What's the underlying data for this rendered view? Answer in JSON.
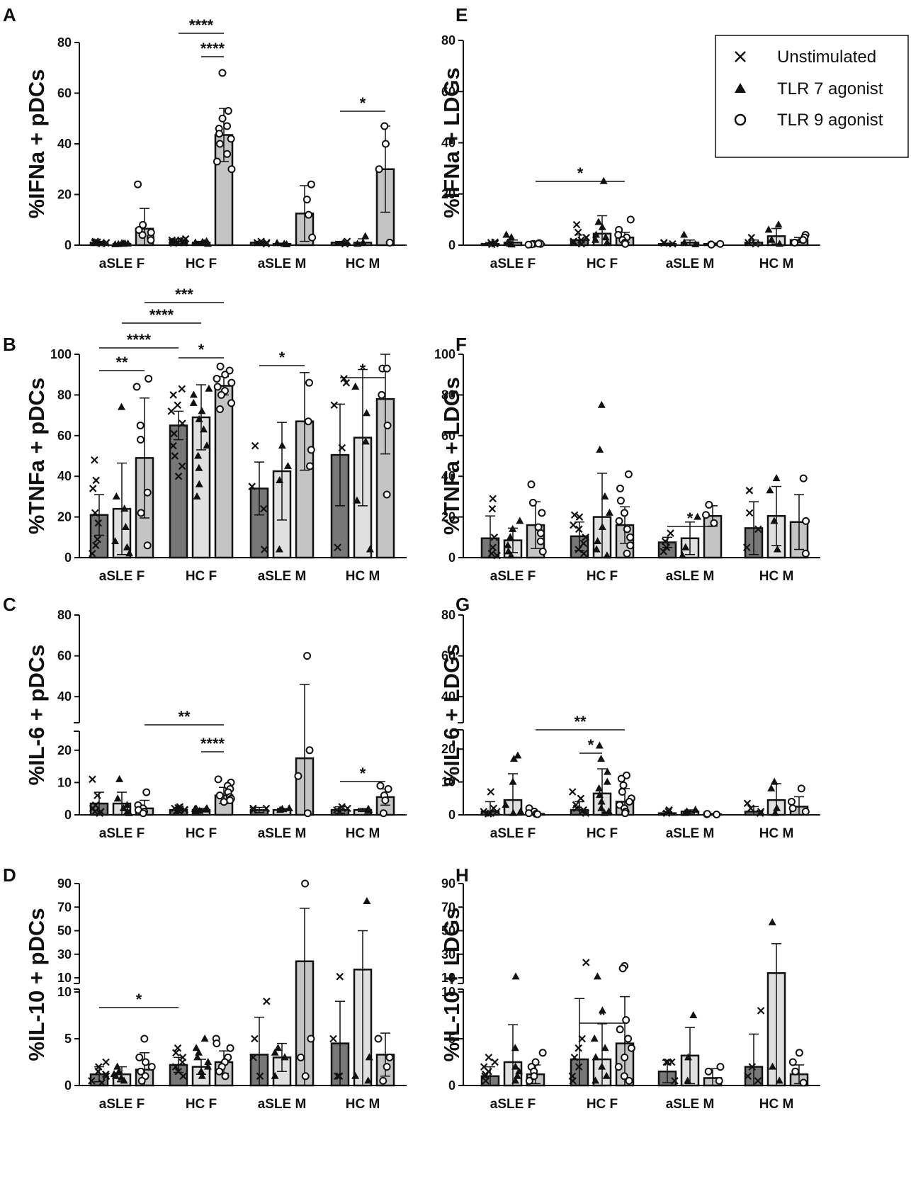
{
  "figure": {
    "groups": [
      "aSLE F",
      "HC F",
      "aSLE M",
      "HC M"
    ],
    "conditions": [
      "Unstimulated",
      "TLR 7 agonist",
      "TLR 9 agonist"
    ],
    "colors": {
      "unstim": "#777777",
      "tlr7": "#e0e0e0",
      "tlr9": "#c4c4c4",
      "ink": "#111111"
    }
  },
  "legend": {
    "items": [
      {
        "marker": "x-mark-icon",
        "label": "Unstimulated"
      },
      {
        "marker": "triangle-icon",
        "label": "TLR 7 agonist"
      },
      {
        "marker": "circle-icon",
        "label": "TLR 9 agonist"
      }
    ]
  },
  "chart_data": [
    {
      "panel": "A",
      "type": "bar",
      "title": "",
      "ylabel": "%IFNa + pDCs",
      "categories": [
        "aSLE F",
        "HC F",
        "aSLE M",
        "HC M"
      ],
      "ylim": [
        0,
        80
      ],
      "yticks": [
        "0",
        "20",
        "40",
        "60",
        "80"
      ],
      "series": [
        {
          "name": "Unstimulated",
          "values": [
            1,
            1.5,
            1,
            1
          ],
          "errors": [
            0.5,
            1,
            0.5,
            0.5
          ]
        },
        {
          "name": "TLR 7 agonist",
          "values": [
            0.5,
            1,
            0.5,
            1
          ],
          "errors": [
            0.5,
            0.5,
            0.3,
            1.5
          ]
        },
        {
          "name": "TLR 9 agonist",
          "values": [
            6.5,
            43.5,
            12.5,
            30
          ],
          "errors": [
            8,
            10.5,
            11,
            17
          ]
        }
      ],
      "significance": [
        {
          "label": "****",
          "from": "HC F / Unstimulated",
          "to": "HC F / TLR 9 agonist"
        },
        {
          "label": "****",
          "from": "HC F / TLR 7 agonist",
          "to": "HC F / TLR 9 agonist"
        },
        {
          "label": "*",
          "from": "HC M / Unstimulated",
          "to": "HC M / TLR 9 agonist"
        }
      ]
    },
    {
      "panel": "B",
      "type": "bar",
      "title": "",
      "ylabel": "%TNFa + pDCs",
      "categories": [
        "aSLE F",
        "HC F",
        "aSLE M",
        "HC M"
      ],
      "ylim": [
        0,
        100
      ],
      "yticks": [
        "0",
        "20",
        "40",
        "60",
        "80",
        "100"
      ],
      "series": [
        {
          "name": "Unstimulated",
          "values": [
            21,
            65,
            34,
            50.5
          ],
          "errors": [
            10,
            7,
            13,
            25
          ]
        },
        {
          "name": "TLR 7 agonist",
          "values": [
            24,
            69,
            42.5,
            59
          ],
          "errors": [
            22.5,
            16,
            24,
            33.5
          ]
        },
        {
          "name": "TLR 9 agonist",
          "values": [
            49,
            84.5,
            67,
            78
          ],
          "errors": [
            29.5,
            4.5,
            24,
            27
          ]
        }
      ],
      "significance": [
        {
          "label": "***",
          "from": "aSLE F / TLR 9 agonist",
          "to": "HC F / TLR 9 agonist"
        },
        {
          "label": "****",
          "from": "aSLE F / TLR 7 agonist",
          "to": "HC F / TLR 7 agonist"
        },
        {
          "label": "****",
          "from": "aSLE F / Unstimulated",
          "to": "HC F / Unstimulated"
        },
        {
          "label": "**",
          "from": "aSLE F / Unstimulated",
          "to": "aSLE F / TLR 9 agonist"
        },
        {
          "label": "*",
          "from": "HC F / Unstimulated",
          "to": "HC F / TLR 9 agonist"
        },
        {
          "label": "*",
          "from": "aSLE M / Unstimulated",
          "to": "aSLE M / TLR 9 agonist"
        },
        {
          "label": "*",
          "from": "HC M / Unstimulated",
          "to": "HC M / TLR 9 agonist"
        }
      ]
    },
    {
      "panel": "C",
      "type": "bar",
      "title": "",
      "ylabel": "%IL-6 + pDCs",
      "categories": [
        "aSLE F",
        "HC F",
        "aSLE M",
        "HC M"
      ],
      "ylim": [
        0,
        80
      ],
      "ybreak": [
        25,
        30
      ],
      "yticks": [
        "0",
        "10",
        "20",
        "40",
        "60",
        "80"
      ],
      "series": [
        {
          "name": "Unstimulated",
          "values": [
            3.5,
            1.5,
            1.5,
            1.5
          ],
          "errors": [
            3.5,
            0.8,
            0.8,
            1
          ]
        },
        {
          "name": "TLR 7 agonist",
          "values": [
            3.5,
            1.5,
            1.5,
            1.5
          ],
          "errors": [
            3.5,
            0.5,
            0.5,
            0.5
          ]
        },
        {
          "name": "TLR 9 agonist",
          "values": [
            2,
            6,
            17.5,
            5.5
          ],
          "errors": [
            2.5,
            2.5,
            28.5,
            2.5
          ]
        }
      ],
      "significance": [
        {
          "label": "**",
          "from": "aSLE F / TLR 9 agonist",
          "to": "HC F / TLR 9 agonist"
        },
        {
          "label": "****",
          "from": "HC F / TLR 7 agonist",
          "to": "HC F / TLR 9 agonist"
        },
        {
          "label": "*",
          "from": "HC M / Unstimulated",
          "to": "HC M / TLR 9 agonist"
        }
      ]
    },
    {
      "panel": "D",
      "type": "bar",
      "title": "",
      "ylabel": "%IL-10 + pDCs",
      "categories": [
        "aSLE F",
        "HC F",
        "aSLE M",
        "HC M"
      ],
      "ylim": [
        0,
        90
      ],
      "ybreak": [
        10,
        10
      ],
      "yticks": [
        "0",
        "5",
        "10",
        "10",
        "30",
        "50",
        "70",
        "90"
      ],
      "series": [
        {
          "name": "Unstimulated",
          "values": [
            1.2,
            2.2,
            3.3,
            4.5
          ],
          "errors": [
            0.8,
            0.8,
            4,
            4.5
          ]
        },
        {
          "name": "TLR 7 agonist",
          "values": [
            1.2,
            2,
            3,
            17
          ],
          "errors": [
            0.8,
            0.8,
            1.5,
            33
          ]
        },
        {
          "name": "TLR 9 agonist",
          "values": [
            1.7,
            2.5,
            24,
            3.3
          ],
          "errors": [
            1.8,
            1.2,
            45,
            2.3
          ]
        }
      ],
      "significance": [
        {
          "label": "*",
          "from": "aSLE F / Unstimulated",
          "to": "HC F / Unstimulated"
        }
      ]
    },
    {
      "panel": "E",
      "type": "bar",
      "title": "",
      "ylabel": "%IFNa + LDGs",
      "categories": [
        "aSLE F",
        "HC F",
        "aSLE M",
        "HC M"
      ],
      "ylim": [
        0,
        80
      ],
      "yticks": [
        "0",
        "20",
        "40",
        "60",
        "80"
      ],
      "series": [
        {
          "name": "Unstimulated",
          "values": [
            0.5,
            2,
            0.5,
            1
          ],
          "errors": [
            0.5,
            2,
            0.3,
            1
          ]
        },
        {
          "name": "TLR 7 agonist",
          "values": [
            1,
            4.5,
            1,
            3.5
          ],
          "errors": [
            1,
            7,
            1,
            3
          ]
        },
        {
          "name": "TLR 9 agonist",
          "values": [
            0.5,
            3,
            0.5,
            2
          ],
          "errors": [
            0.3,
            2,
            0.3,
            1
          ]
        }
      ],
      "significance": [
        {
          "label": "*",
          "from": "aSLE F / TLR 9 agonist",
          "to": "HC F / TLR 9 agonist"
        }
      ]
    },
    {
      "panel": "F",
      "type": "bar",
      "title": "",
      "ylabel": "%TNFa + LDGs",
      "categories": [
        "aSLE F",
        "HC F",
        "aSLE M",
        "HC M"
      ],
      "ylim": [
        0,
        100
      ],
      "yticks": [
        "0",
        "20",
        "40",
        "60",
        "80",
        "100"
      ],
      "series": [
        {
          "name": "Unstimulated",
          "values": [
            9.5,
            10.5,
            7.5,
            14.5
          ],
          "errors": [
            11,
            7,
            2.5,
            13
          ]
        },
        {
          "name": "TLR 7 agonist",
          "values": [
            8.5,
            20,
            9.5,
            20.5
          ],
          "errors": [
            6,
            21.5,
            8,
            14.5
          ]
        },
        {
          "name": "TLR 9 agonist",
          "values": [
            16,
            16,
            20.5,
            17.5
          ],
          "errors": [
            11.5,
            9,
            5,
            13.5
          ]
        }
      ],
      "significance": [
        {
          "label": "*",
          "from": "aSLE M / Unstimulated",
          "to": "aSLE M / TLR 9 agonist"
        }
      ]
    },
    {
      "panel": "G",
      "type": "bar",
      "title": "",
      "ylabel": "%IL-6 + LDGs",
      "categories": [
        "aSLE F",
        "HC F",
        "aSLE M",
        "HC M"
      ],
      "ylim": [
        0,
        80
      ],
      "ybreak": [
        25,
        30
      ],
      "yticks": [
        "0",
        "10",
        "20",
        "40",
        "60",
        "80"
      ],
      "series": [
        {
          "name": "Unstimulated",
          "values": [
            1,
            1.5,
            0.5,
            1
          ],
          "errors": [
            3,
            2.5,
            0.5,
            1.5
          ]
        },
        {
          "name": "TLR 7 agonist",
          "values": [
            4.5,
            6.5,
            1,
            4.5
          ],
          "errors": [
            8,
            7.5,
            0.5,
            5
          ]
        },
        {
          "name": "TLR 9 agonist",
          "values": [
            0.3,
            4,
            0.2,
            2.5
          ],
          "errors": [
            0.3,
            4,
            0.2,
            3
          ]
        }
      ],
      "significance": [
        {
          "label": "**",
          "from": "aSLE F / TLR 9 agonist",
          "to": "HC F / TLR 9 agonist"
        },
        {
          "label": "*",
          "from": "HC F / Unstimulated",
          "to": "HC F / TLR 7 agonist"
        }
      ]
    },
    {
      "panel": "H",
      "type": "bar",
      "title": "",
      "ylabel": "%IL-10 + LDGs",
      "categories": [
        "aSLE F",
        "HC F",
        "aSLE M",
        "HC M"
      ],
      "ylim": [
        0,
        90
      ],
      "ybreak": [
        10,
        10
      ],
      "yticks": [
        "0",
        "5",
        "10",
        "10",
        "30",
        "50",
        "70",
        "90"
      ],
      "series": [
        {
          "name": "Unstimulated",
          "values": [
            1,
            2.8,
            1.5,
            2
          ],
          "errors": [
            1,
            6.5,
            1.2,
            3.5
          ]
        },
        {
          "name": "TLR 7 agonist",
          "values": [
            2.5,
            2.8,
            3.2,
            14
          ],
          "errors": [
            4,
            3.8,
            3,
            25
          ]
        },
        {
          "name": "TLR 9 agonist",
          "values": [
            1.2,
            4.5,
            0.8,
            1.2
          ],
          "errors": [
            1,
            5,
            1,
            1
          ]
        }
      ],
      "significance": [
        {
          "label": "*",
          "from": "HC F / Unstimulated",
          "to": "HC F / TLR 9 agonist"
        }
      ]
    }
  ]
}
